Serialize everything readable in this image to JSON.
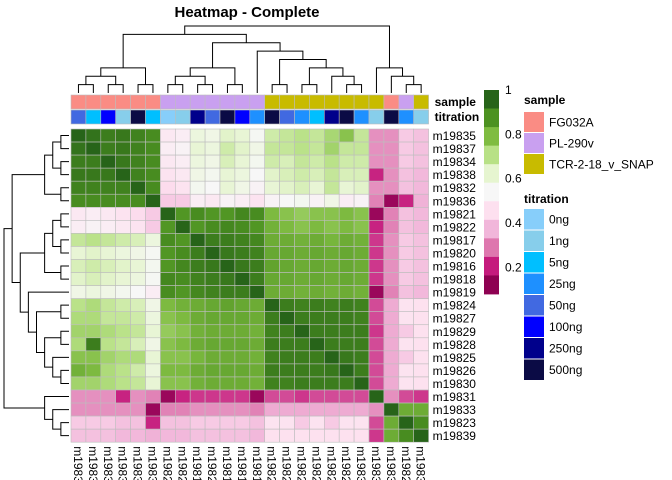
{
  "chart_data": {
    "type": "heatmap",
    "title": "Heatmap - Complete",
    "samples": [
      "m19835",
      "m19837",
      "m19834",
      "m19838",
      "m19832",
      "m19836",
      "m19821",
      "m19822",
      "m19817",
      "m19820",
      "m19816",
      "m19818",
      "m19819",
      "m19824",
      "m19827",
      "m19829",
      "m19828",
      "m19825",
      "m19826",
      "m19830",
      "m19831",
      "m19833",
      "m19823",
      "m19839"
    ],
    "matrix": [
      [
        1.0,
        0.97,
        0.95,
        0.96,
        0.94,
        0.92,
        0.48,
        0.5,
        0.6,
        0.58,
        0.64,
        0.62,
        0.55,
        0.68,
        0.7,
        0.72,
        0.7,
        0.75,
        0.8,
        0.7,
        0.3,
        0.3,
        0.4,
        0.38
      ],
      [
        0.97,
        1.0,
        0.95,
        0.96,
        0.94,
        0.92,
        0.5,
        0.52,
        0.62,
        0.6,
        0.68,
        0.64,
        0.58,
        0.7,
        0.7,
        0.72,
        0.7,
        0.76,
        0.7,
        0.7,
        0.3,
        0.3,
        0.4,
        0.38
      ],
      [
        0.95,
        0.95,
        1.0,
        0.96,
        0.94,
        0.92,
        0.48,
        0.5,
        0.6,
        0.58,
        0.66,
        0.62,
        0.56,
        0.68,
        0.66,
        0.7,
        0.68,
        0.72,
        0.68,
        0.68,
        0.3,
        0.3,
        0.4,
        0.38
      ],
      [
        0.96,
        0.96,
        0.96,
        1.0,
        0.94,
        0.92,
        0.46,
        0.48,
        0.58,
        0.56,
        0.62,
        0.6,
        0.54,
        0.64,
        0.66,
        0.68,
        0.66,
        0.7,
        0.66,
        0.66,
        0.18,
        0.3,
        0.38,
        0.36
      ],
      [
        0.94,
        0.94,
        0.94,
        0.94,
        1.0,
        0.92,
        0.44,
        0.46,
        0.56,
        0.54,
        0.62,
        0.58,
        0.52,
        0.62,
        0.64,
        0.66,
        0.62,
        0.7,
        0.62,
        0.64,
        0.3,
        0.3,
        0.38,
        0.36
      ],
      [
        0.92,
        0.92,
        0.92,
        0.92,
        0.92,
        1.0,
        0.4,
        0.4,
        0.5,
        0.48,
        0.52,
        0.5,
        0.46,
        0.52,
        0.54,
        0.56,
        0.52,
        0.58,
        0.5,
        0.52,
        0.28,
        0.1,
        0.18,
        0.35
      ],
      [
        0.48,
        0.5,
        0.48,
        0.46,
        0.44,
        0.4,
        1.0,
        0.9,
        0.92,
        0.9,
        0.9,
        0.93,
        0.92,
        0.82,
        0.8,
        0.78,
        0.8,
        0.8,
        0.82,
        0.8,
        0.1,
        0.28,
        0.38,
        0.36
      ],
      [
        0.5,
        0.52,
        0.5,
        0.48,
        0.46,
        0.4,
        0.9,
        1.0,
        0.9,
        0.92,
        0.93,
        0.92,
        0.9,
        0.84,
        0.82,
        0.8,
        0.82,
        0.8,
        0.82,
        0.8,
        0.18,
        0.28,
        0.38,
        0.36
      ],
      [
        0.7,
        0.72,
        0.7,
        0.68,
        0.66,
        0.6,
        0.92,
        0.9,
        1.0,
        0.95,
        0.95,
        0.94,
        0.93,
        0.85,
        0.85,
        0.84,
        0.85,
        0.83,
        0.85,
        0.84,
        0.2,
        0.3,
        0.4,
        0.38
      ],
      [
        0.62,
        0.64,
        0.62,
        0.6,
        0.58,
        0.55,
        0.9,
        0.92,
        0.95,
        1.0,
        0.96,
        0.95,
        0.94,
        0.86,
        0.86,
        0.85,
        0.86,
        0.85,
        0.86,
        0.85,
        0.2,
        0.3,
        0.4,
        0.38
      ],
      [
        0.66,
        0.68,
        0.66,
        0.64,
        0.62,
        0.56,
        0.9,
        0.93,
        0.95,
        0.96,
        1.0,
        0.96,
        0.95,
        0.87,
        0.86,
        0.85,
        0.86,
        0.85,
        0.86,
        0.85,
        0.2,
        0.3,
        0.4,
        0.38
      ],
      [
        0.64,
        0.66,
        0.64,
        0.62,
        0.6,
        0.55,
        0.93,
        0.92,
        0.94,
        0.95,
        0.96,
        1.0,
        0.95,
        0.86,
        0.86,
        0.85,
        0.86,
        0.85,
        0.86,
        0.85,
        0.2,
        0.3,
        0.4,
        0.38
      ],
      [
        0.58,
        0.6,
        0.58,
        0.56,
        0.54,
        0.5,
        0.92,
        0.9,
        0.93,
        0.94,
        0.95,
        0.95,
        1.0,
        0.85,
        0.85,
        0.84,
        0.85,
        0.84,
        0.85,
        0.84,
        0.1,
        0.28,
        0.38,
        0.36
      ],
      [
        0.72,
        0.74,
        0.7,
        0.68,
        0.66,
        0.58,
        0.82,
        0.84,
        0.85,
        0.86,
        0.87,
        0.86,
        0.85,
        1.0,
        0.95,
        0.94,
        0.95,
        0.94,
        0.95,
        0.94,
        0.22,
        0.34,
        0.46,
        0.45
      ],
      [
        0.74,
        0.74,
        0.7,
        0.7,
        0.68,
        0.6,
        0.8,
        0.82,
        0.85,
        0.86,
        0.86,
        0.86,
        0.85,
        0.95,
        1.0,
        0.95,
        0.95,
        0.95,
        0.95,
        0.94,
        0.22,
        0.34,
        0.46,
        0.45
      ],
      [
        0.76,
        0.76,
        0.74,
        0.72,
        0.7,
        0.62,
        0.78,
        0.8,
        0.84,
        0.85,
        0.85,
        0.85,
        0.84,
        0.94,
        0.95,
        1.0,
        0.95,
        0.95,
        0.95,
        0.95,
        0.2,
        0.34,
        0.4,
        0.45
      ],
      [
        0.74,
        0.95,
        0.72,
        0.7,
        0.66,
        0.58,
        0.8,
        0.82,
        0.85,
        0.86,
        0.86,
        0.86,
        0.85,
        0.95,
        0.95,
        0.95,
        1.0,
        0.95,
        0.95,
        0.95,
        0.22,
        0.34,
        0.46,
        0.45
      ],
      [
        0.8,
        0.8,
        0.76,
        0.74,
        0.74,
        0.62,
        0.8,
        0.8,
        0.83,
        0.85,
        0.85,
        0.85,
        0.84,
        0.94,
        0.95,
        0.95,
        0.95,
        1.0,
        0.96,
        0.95,
        0.22,
        0.34,
        0.4,
        0.45
      ],
      [
        0.84,
        0.82,
        0.74,
        0.72,
        0.68,
        0.6,
        0.82,
        0.82,
        0.85,
        0.86,
        0.86,
        0.86,
        0.85,
        0.95,
        0.95,
        0.95,
        0.95,
        0.96,
        1.0,
        0.95,
        0.22,
        0.34,
        0.46,
        0.45
      ],
      [
        0.76,
        0.76,
        0.74,
        0.72,
        0.7,
        0.62,
        0.8,
        0.8,
        0.84,
        0.85,
        0.85,
        0.85,
        0.84,
        0.94,
        0.94,
        0.95,
        0.95,
        0.95,
        0.95,
        1.0,
        0.22,
        0.34,
        0.46,
        0.45
      ],
      [
        0.3,
        0.3,
        0.3,
        0.18,
        0.3,
        0.28,
        0.1,
        0.18,
        0.2,
        0.2,
        0.2,
        0.2,
        0.1,
        0.22,
        0.22,
        0.2,
        0.22,
        0.22,
        0.22,
        0.22,
        1.0,
        0.3,
        0.22,
        0.2
      ],
      [
        0.3,
        0.3,
        0.3,
        0.3,
        0.3,
        0.1,
        0.28,
        0.28,
        0.3,
        0.3,
        0.3,
        0.3,
        0.28,
        0.34,
        0.34,
        0.34,
        0.34,
        0.34,
        0.34,
        0.34,
        0.3,
        1.0,
        0.85,
        0.85
      ],
      [
        0.4,
        0.4,
        0.4,
        0.38,
        0.38,
        0.18,
        0.38,
        0.38,
        0.4,
        0.4,
        0.4,
        0.4,
        0.38,
        0.46,
        0.46,
        0.4,
        0.46,
        0.4,
        0.46,
        0.46,
        0.22,
        0.85,
        1.0,
        0.92
      ],
      [
        0.38,
        0.38,
        0.38,
        0.36,
        0.36,
        0.35,
        0.36,
        0.36,
        0.38,
        0.38,
        0.38,
        0.38,
        0.36,
        0.45,
        0.45,
        0.45,
        0.45,
        0.45,
        0.45,
        0.45,
        0.2,
        0.85,
        0.92,
        1.0
      ]
    ],
    "annotations": {
      "sample": [
        "FG032A",
        "FG032A",
        "FG032A",
        "FG032A",
        "FG032A",
        "FG032A",
        "PL-290v",
        "PL-290v",
        "PL-290v",
        "PL-290v",
        "PL-290v",
        "PL-290v",
        "PL-290v",
        "TCR-2-18_v_SNAP",
        "TCR-2-18_v_SNAP",
        "TCR-2-18_v_SNAP",
        "TCR-2-18_v_SNAP",
        "TCR-2-18_v_SNAP",
        "TCR-2-18_v_SNAP",
        "TCR-2-18_v_SNAP",
        "TCR-2-18_v_SNAP",
        "FG032A",
        "PL-290v",
        "TCR-2-18_v_SNAP"
      ],
      "titration": [
        "50ng",
        "5ng",
        "100ng",
        "1ng",
        "500ng",
        "5ng",
        "0ng",
        "1ng",
        "250ng",
        "50ng",
        "500ng",
        "100ng",
        "25ng",
        "500ng",
        "50ng",
        "25ng",
        "5ng",
        "250ng",
        "500ng",
        "25ng",
        "1ng",
        "500ng",
        "25ng",
        "1ng"
      ]
    },
    "scale": {
      "ticks": [
        "1",
        "0.8",
        "0.6",
        "0.4",
        "0.2"
      ],
      "tick_values": [
        1.0,
        0.8,
        0.6,
        0.4,
        0.2
      ],
      "colors": [
        "#8e0152",
        "#c51b7d",
        "#de77ae",
        "#f1b6da",
        "#fde0ef",
        "#f7f7f7",
        "#e6f5d0",
        "#b8e186",
        "#7fbc41",
        "#4d9221",
        "#276419"
      ],
      "domain": [
        0.08,
        1.0
      ]
    },
    "legend": {
      "sample_title": "sample",
      "sample_levels": [
        "FG032A",
        "PL-290v",
        "TCR-2-18_v_SNAP"
      ],
      "sample_colors": [
        "#fa8c84",
        "#c9a0f0",
        "#c8bb00"
      ],
      "titration_title": "titration",
      "titration_levels": [
        "0ng",
        "1ng",
        "5ng",
        "25ng",
        "50ng",
        "100ng",
        "250ng",
        "500ng"
      ],
      "titration_colors": [
        "#87cefa",
        "#87ceeb",
        "#00bfff",
        "#1e90ff",
        "#4169e1",
        "#0000ff",
        "#00008b",
        "#0b0b45"
      ]
    },
    "annotation_row_labels": [
      "sample",
      "titration"
    ],
    "column_tree": [
      [
        [
          [
            [
              1,
              0
            ],
            [
              2,
              3
            ]
          ],
          [
            4,
            5
          ]
        ],
        [
          [
            [
              [
                6,
                7
              ],
              [
                8,
                9
              ]
            ],
            [
              10,
              11
            ]
          ],
          [
            12,
            [
              [
                13,
                14
              ],
              [
                [
                  15,
                  16
                ],
                [
                  17,
                  [
                    18,
                    19
                  ]
                ]
              ]
            ]
          ]
        ]
      ],
      [
        20,
        [
          21,
          [
            22,
            23
          ]
        ]
      ]
    ],
    "row_tree": [
      [
        [
          [
            [
              1,
              0
            ],
            [
              2,
              3
            ]
          ],
          [
            4,
            5
          ]
        ],
        [
          [
            [
              [
                6,
                7
              ],
              [
                8,
                9
              ]
            ],
            [
              10,
              11
            ]
          ],
          [
            12,
            [
              [
                13,
                14
              ],
              [
                [
                  15,
                  16
                ],
                [
                  17,
                  [
                    18,
                    19
                  ]
                ]
              ]
            ]
          ]
        ]
      ],
      [
        20,
        [
          21,
          [
            22,
            23
          ]
        ]
      ]
    ]
  }
}
